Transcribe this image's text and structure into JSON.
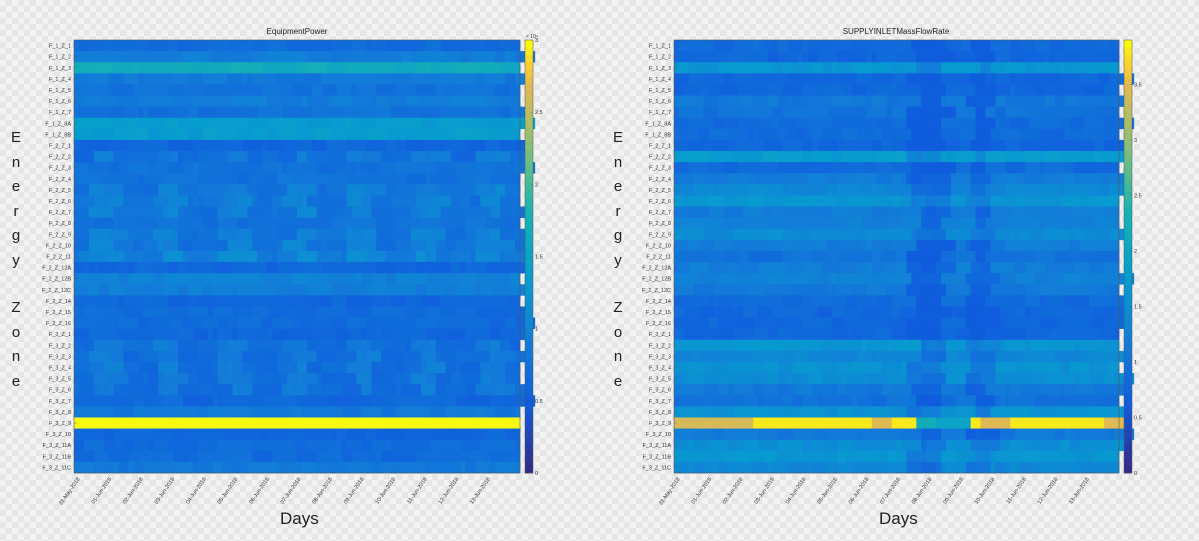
{
  "page": {
    "ylabel_letters": [
      "E",
      "n",
      "e",
      "r",
      "g",
      "y",
      "",
      "Z",
      "o",
      "n",
      "e"
    ],
    "ylabel_text": "Energy Zone",
    "xlabel_text": "Days"
  },
  "chart_data": [
    {
      "type": "heatmap",
      "title": "EquipmentPower",
      "xlabel": "Days",
      "ylabel": "Energy Zone",
      "y_categories": [
        "F_1_Z_1",
        "F_1_Z_2",
        "F_1_Z_3",
        "F_1_Z_4",
        "F_1_Z_5",
        "F_1_Z_6",
        "F_1_Z_7",
        "F_1_Z_8A",
        "F_1_Z_8B",
        "F_2_Z_1",
        "F_2_Z_2",
        "F_2_Z_3",
        "F_2_Z_4",
        "F_2_Z_5",
        "F_2_Z_6",
        "F_2_Z_7",
        "F_2_Z_8",
        "F_2_Z_9",
        "F_2_Z_10",
        "F_2_Z_11",
        "F_2_Z_12A",
        "F_2_Z_12B",
        "F_2_Z_12C",
        "F_2_Z_14",
        "F_2_Z_15",
        "F_2_Z_16",
        "F_3_Z_1",
        "F_3_Z_2",
        "F_3_Z_3",
        "F_3_Z_4",
        "F_3_Z_5",
        "F_3_Z_6",
        "F_3_Z_7",
        "F_3_Z_8",
        "F_3_Z_9",
        "F_3_Z_10",
        "F_3_Z_11A",
        "F_3_Z_11B",
        "F_3_Z_11C"
      ],
      "x_ticks": [
        "31-May-2018",
        "01-Jun-2018",
        "02-Jun-2018",
        "03-Jun-2018",
        "04-Jun-2018",
        "05-Jun-2018",
        "06-Jun-2018",
        "07-Jun-2018",
        "08-Jun-2018",
        "09-Jun-2018",
        "10-Jun-2018",
        "11-Jun-2018",
        "12-Jun-2018",
        "13-Jun-2018"
      ],
      "colorbar": {
        "min": 0,
        "max": 3,
        "exponent": "× 10⁴",
        "ticks": [
          "0",
          "0.5",
          "1",
          "1.5",
          "2",
          "2.5",
          "3"
        ],
        "colormap": "parula"
      },
      "row_levels": [
        0.22,
        0.3,
        0.55,
        0.28,
        0.25,
        0.3,
        0.25,
        0.45,
        0.45,
        0.2,
        0.22,
        0.25,
        0.25,
        0.25,
        0.25,
        0.25,
        0.25,
        0.25,
        0.25,
        0.28,
        0.2,
        0.32,
        0.3,
        0.2,
        0.22,
        0.22,
        0.2,
        0.22,
        0.22,
        0.22,
        0.22,
        0.22,
        0.2,
        0.28,
        1.0,
        0.2,
        0.22,
        0.22,
        0.28
      ],
      "patterned_rows": [
        10,
        13,
        14,
        15,
        17,
        18,
        19,
        27,
        28,
        29,
        30,
        31
      ],
      "peak_row": 34
    },
    {
      "type": "heatmap",
      "title": "SUPPLYINLETMassFlowRate",
      "xlabel": "Days",
      "ylabel": "Energy Zone",
      "y_categories": [
        "F_1_Z_1",
        "F_1_Z_2",
        "F_1_Z_3",
        "F_1_Z_4",
        "F_1_Z_5",
        "F_1_Z_6",
        "F_1_Z_7",
        "F_1_Z_8A",
        "F_1_Z_8B",
        "F_2_Z_1",
        "F_2_Z_2",
        "F_2_Z_3",
        "F_2_Z_4",
        "F_2_Z_5",
        "F_2_Z_6",
        "F_2_Z_7",
        "F_2_Z_8",
        "F_2_Z_9",
        "F_2_Z_10",
        "F_2_Z_11",
        "F_2_Z_12A",
        "F_2_Z_12B",
        "F_2_Z_12C",
        "F_2_Z_14",
        "F_2_Z_15",
        "F_2_Z_16",
        "F_3_Z_1",
        "F_3_Z_2",
        "F_3_Z_3",
        "F_3_Z_4",
        "F_3_Z_5",
        "F_3_Z_6",
        "F_3_Z_7",
        "F_3_Z_8",
        "F_3_Z_9",
        "F_3_Z_10",
        "F_3_Z_11A",
        "F_3_Z_11B",
        "F_3_Z_11C"
      ],
      "x_ticks": [
        "31-May-2018",
        "01-Jun-2018",
        "02-Jun-2018",
        "03-Jun-2018",
        "04-Jun-2018",
        "05-Jun-2018",
        "06-Jun-2018",
        "07-Jun-2018",
        "08-Jun-2018",
        "09-Jun-2018",
        "10-Jun-2018",
        "11-Jun-2018",
        "12-Jun-2018",
        "13-Jun-2018"
      ],
      "colorbar": {
        "min": 0,
        "max": 3.9,
        "ticks": [
          "0",
          "0.5",
          "1",
          "1.5",
          "2",
          "2.5",
          "3",
          "3.5"
        ],
        "colormap": "parula"
      },
      "row_levels": [
        0.22,
        0.2,
        0.42,
        0.2,
        0.2,
        0.28,
        0.25,
        0.22,
        0.22,
        0.2,
        0.45,
        0.22,
        0.3,
        0.35,
        0.42,
        0.3,
        0.32,
        0.38,
        0.3,
        0.25,
        0.3,
        0.32,
        0.28,
        0.22,
        0.2,
        0.2,
        0.2,
        0.42,
        0.35,
        0.4,
        0.38,
        0.28,
        0.25,
        0.4,
        0.75,
        0.28,
        0.38,
        0.42,
        0.35
      ],
      "peak_row": 34
    }
  ]
}
